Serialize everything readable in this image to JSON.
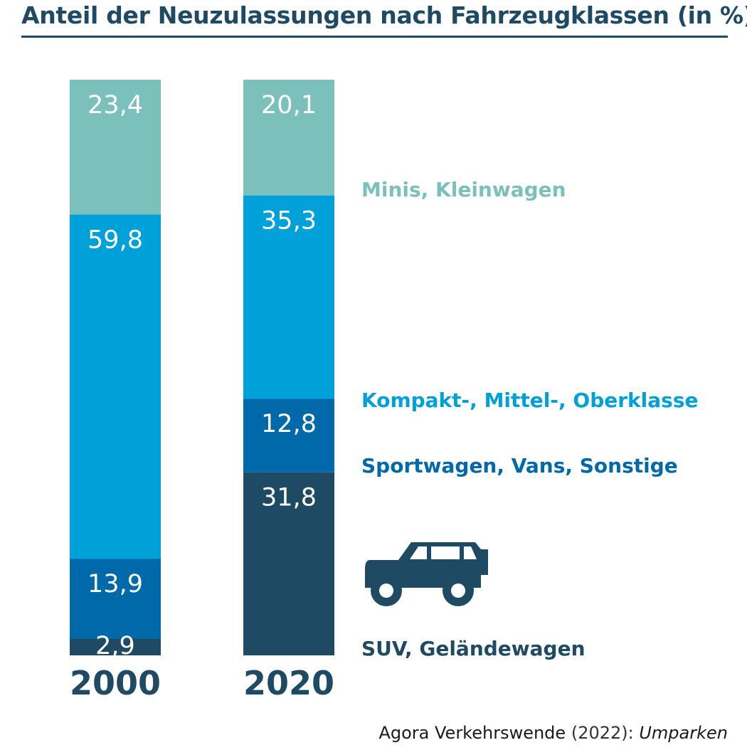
{
  "title": "Anteil der Neuzulassungen nach Fahrzeugklassen (in %)",
  "source": {
    "author": "Agora Verkehrswende",
    "year": "(2022):",
    "work": "Umparken"
  },
  "chart_data": {
    "type": "bar",
    "stacked": true,
    "categories": [
      "2000",
      "2020"
    ],
    "series": [
      {
        "name": "SUV, Geländewagen",
        "color": "#1f4a63",
        "values": [
          2.9,
          31.8
        ],
        "labels": [
          "2,9",
          "31,8"
        ]
      },
      {
        "name": "Sportwagen, Vans, Sonstige",
        "color": "#0069aa",
        "values": [
          13.9,
          12.8
        ],
        "labels": [
          "13,9",
          "12,8"
        ]
      },
      {
        "name": "Kompakt-, Mittel-, Oberklasse",
        "color": "#00a0d8",
        "values": [
          59.8,
          35.3
        ],
        "labels": [
          "59,8",
          "35,3"
        ]
      },
      {
        "name": "Minis, Kleinwagen",
        "color": "#7bc0bb",
        "values": [
          23.4,
          20.1
        ],
        "labels": [
          "23,4",
          "20,1"
        ]
      }
    ],
    "legend_position": "right",
    "icons": [
      "suv-car-icon"
    ]
  }
}
